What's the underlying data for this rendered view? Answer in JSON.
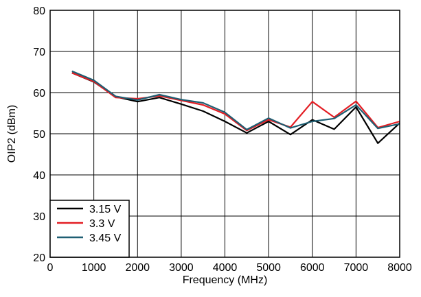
{
  "chart_data": {
    "type": "line",
    "title": "",
    "xlabel": "Frequency (MHz)",
    "ylabel": "OIP2 (dBm)",
    "xlim": [
      0,
      8000
    ],
    "ylim": [
      20,
      80
    ],
    "x_ticks": [
      0,
      1000,
      2000,
      3000,
      4000,
      5000,
      6000,
      7000,
      8000
    ],
    "y_ticks": [
      20,
      30,
      40,
      50,
      60,
      70,
      80
    ],
    "grid": true,
    "legend_position": "bottom-left",
    "x": [
      500,
      1000,
      1500,
      2000,
      2500,
      3000,
      3500,
      4000,
      4500,
      5000,
      5500,
      6000,
      6500,
      7000,
      7500,
      8000
    ],
    "series": [
      {
        "name": "3.15 V",
        "color": "#000000",
        "values": [
          64.8,
          62.6,
          59.0,
          57.8,
          58.8,
          57.2,
          55.5,
          53.0,
          50.2,
          53.0,
          49.8,
          53.4,
          51.1,
          56.5,
          47.7,
          52.6
        ]
      },
      {
        "name": "3.3 V",
        "color": "#e31e24",
        "values": [
          64.8,
          62.7,
          58.8,
          58.5,
          59.2,
          58.1,
          57.0,
          54.8,
          50.8,
          53.4,
          51.6,
          57.8,
          54.0,
          57.9,
          51.5,
          53.0
        ]
      },
      {
        "name": "3.45 V",
        "color": "#1f5f73",
        "values": [
          65.2,
          63.0,
          59.1,
          58.2,
          59.5,
          58.3,
          57.5,
          55.2,
          51.0,
          53.8,
          51.4,
          53.0,
          53.7,
          57.0,
          51.3,
          52.4
        ]
      }
    ]
  }
}
